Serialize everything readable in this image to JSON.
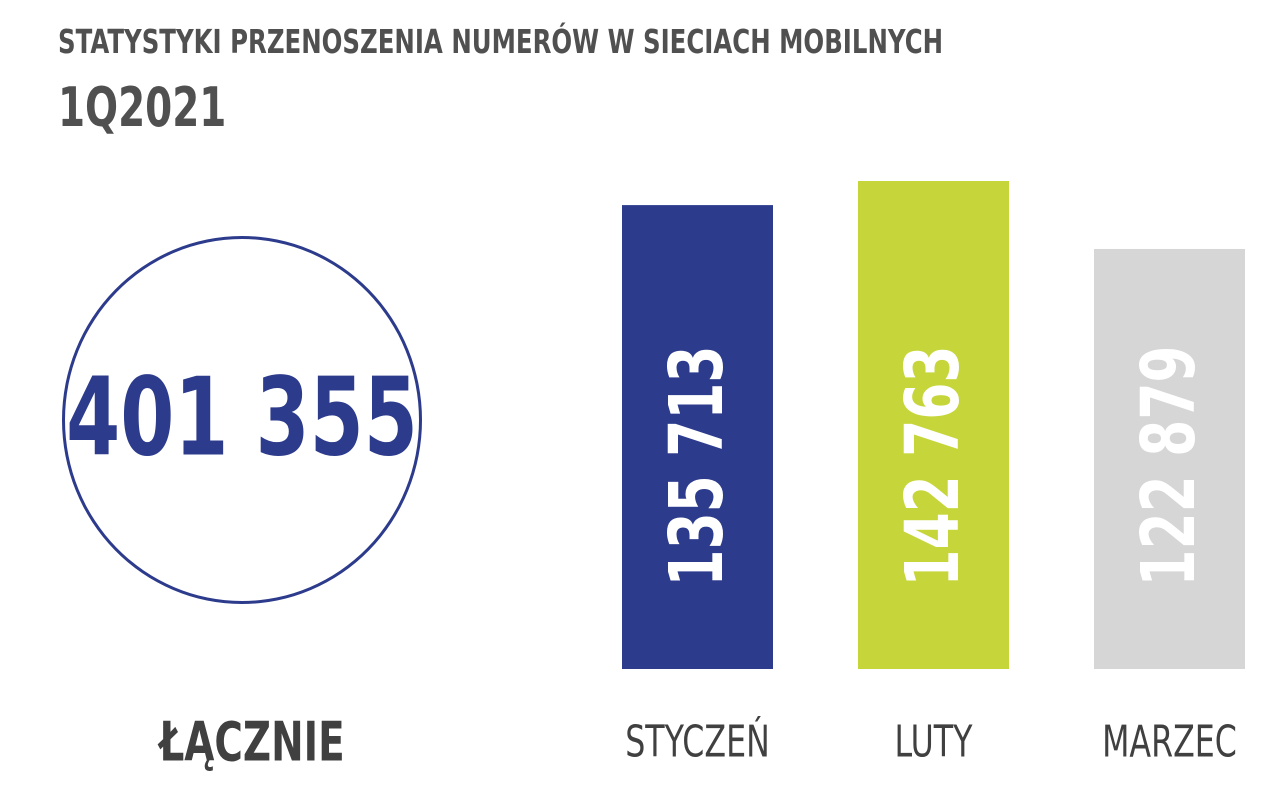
{
  "title": "STATYSTYKI PRZENOSZENIA NUMERÓW W SIECIACH MOBILNYCH",
  "subtitle": "1Q2021",
  "total": {
    "value": "401 355",
    "label": "ŁĄCZNIE",
    "color": "#2c3b8c"
  },
  "chart_data": {
    "type": "bar",
    "title": "STATYSTYKI PRZENOSZENIA NUMERÓW W SIECIACH MOBILNYCH",
    "categories": [
      "STYCZEŃ",
      "LUTY",
      "MARZEC"
    ],
    "values": [
      135713,
      142763,
      122879
    ],
    "value_labels": [
      "135 713",
      "142 763",
      "122 879"
    ],
    "colors": [
      "#2c3b8c",
      "#c6d63a",
      "#d6d6d6"
    ],
    "xlabel": "",
    "ylabel": "",
    "grid": false
  }
}
